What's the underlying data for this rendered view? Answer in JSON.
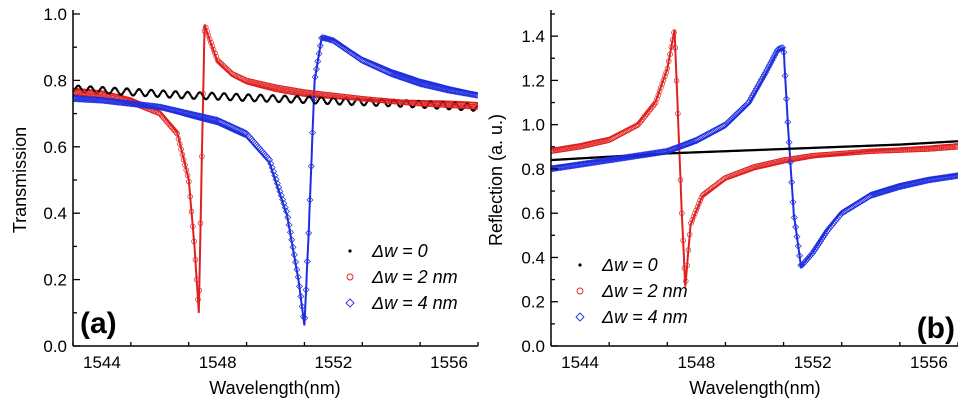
{
  "figure": {
    "panels": [
      "(a)",
      "(b)"
    ]
  },
  "chart_data": [
    {
      "type": "line",
      "panel_label": "(a)",
      "xlabel": "Wavelength(nm)",
      "ylabel": "Transmission",
      "xlim": [
        1543,
        1557
      ],
      "ylim": [
        0.0,
        1.0
      ],
      "xticks": [
        1544,
        1548,
        1552,
        1556
      ],
      "xtick_labels": [
        "1544",
        "1548",
        "1552",
        "1556"
      ],
      "yticks": [
        0.0,
        0.2,
        0.4,
        0.6,
        0.8,
        1.0
      ],
      "ytick_labels": [
        "0.0",
        "0.2",
        "0.4",
        "0.6",
        "0.8",
        "1.0"
      ],
      "legend_position": "lower-right",
      "series": [
        {
          "name": "Δw = 0",
          "color": "#000000",
          "marker": "dot",
          "x": [
            1543,
            1544,
            1545,
            1546,
            1547,
            1548,
            1549,
            1550,
            1551,
            1552,
            1553,
            1554,
            1555,
            1556,
            1557
          ],
          "y": [
            0.775,
            0.77,
            0.765,
            0.76,
            0.755,
            0.752,
            0.748,
            0.745,
            0.742,
            0.738,
            0.735,
            0.732,
            0.728,
            0.723,
            0.718
          ],
          "ripple": 0.01
        },
        {
          "name": "Δw = 2 nm",
          "color": "#e02020",
          "marker": "circle",
          "fit": "fano",
          "x": [
            1543,
            1544,
            1545,
            1546,
            1546.6,
            1547,
            1547.2,
            1547.35,
            1547.45,
            1547.55,
            1547.7,
            1548,
            1548.5,
            1549,
            1550,
            1551,
            1552,
            1553,
            1554,
            1555,
            1556,
            1557
          ],
          "y": [
            0.765,
            0.755,
            0.735,
            0.7,
            0.64,
            0.5,
            0.3,
            0.1,
            0.55,
            0.97,
            0.93,
            0.86,
            0.82,
            0.8,
            0.78,
            0.765,
            0.755,
            0.745,
            0.737,
            0.73,
            0.725,
            0.72
          ]
        },
        {
          "name": "Δw = 4 nm",
          "color": "#1f2ee0",
          "marker": "diamond",
          "fit": "fano",
          "x": [
            1543,
            1544,
            1545,
            1546,
            1547,
            1548,
            1549,
            1549.8,
            1550.4,
            1550.8,
            1551.0,
            1551.15,
            1551.35,
            1551.6,
            1552,
            1552.5,
            1553,
            1554,
            1555,
            1556,
            1557
          ],
          "y": [
            0.745,
            0.74,
            0.73,
            0.72,
            0.7,
            0.68,
            0.64,
            0.56,
            0.4,
            0.2,
            0.065,
            0.35,
            0.8,
            0.93,
            0.92,
            0.89,
            0.86,
            0.82,
            0.79,
            0.77,
            0.755
          ]
        }
      ]
    },
    {
      "type": "line",
      "panel_label": "(b)",
      "xlabel": "Wavelength(nm)",
      "ylabel": "Reflection (a. u.)",
      "xlim": [
        1543,
        1557
      ],
      "ylim": [
        0.0,
        1.5
      ],
      "xticks": [
        1544,
        1548,
        1552,
        1556
      ],
      "xtick_labels": [
        "1544",
        "1548",
        "1552",
        "1556"
      ],
      "yticks": [
        0.0,
        0.2,
        0.4,
        0.6,
        0.8,
        1.0,
        1.2,
        1.4
      ],
      "ytick_labels": [
        "0.0",
        "0.2",
        "0.4",
        "0.6",
        "0.8",
        "1.0",
        "1.2",
        "1.4"
      ],
      "legend_position": "lower-left",
      "series": [
        {
          "name": "Δw = 0",
          "color": "#000000",
          "marker": "dot",
          "x": [
            1543,
            1545,
            1547,
            1549,
            1551,
            1553,
            1555,
            1557
          ],
          "y": [
            0.84,
            0.855,
            0.87,
            0.88,
            0.89,
            0.9,
            0.91,
            0.925
          ],
          "ripple": 0.0
        },
        {
          "name": "Δw = 2 nm",
          "color": "#e02020",
          "marker": "circle",
          "fit": "fano",
          "x": [
            1543,
            1544,
            1545,
            1546,
            1546.6,
            1547,
            1547.25,
            1547.38,
            1547.5,
            1547.62,
            1547.8,
            1548.2,
            1549,
            1550,
            1551,
            1552,
            1553,
            1554,
            1555,
            1556,
            1557
          ],
          "y": [
            0.88,
            0.9,
            0.93,
            1.0,
            1.1,
            1.25,
            1.43,
            1.0,
            0.6,
            0.27,
            0.55,
            0.68,
            0.76,
            0.81,
            0.84,
            0.86,
            0.87,
            0.88,
            0.885,
            0.89,
            0.9
          ]
        },
        {
          "name": "Δw = 4 nm",
          "color": "#1f2ee0",
          "marker": "diamond",
          "fit": "fano",
          "x": [
            1543,
            1544,
            1545,
            1546,
            1547,
            1548,
            1549,
            1549.8,
            1550.4,
            1550.8,
            1551.0,
            1551.15,
            1551.35,
            1551.6,
            1552,
            1552.5,
            1553,
            1554,
            1555,
            1556,
            1557
          ],
          "y": [
            0.8,
            0.82,
            0.84,
            0.86,
            0.88,
            0.93,
            1.0,
            1.1,
            1.24,
            1.34,
            1.35,
            1.0,
            0.6,
            0.36,
            0.42,
            0.52,
            0.6,
            0.68,
            0.72,
            0.75,
            0.77
          ]
        }
      ]
    }
  ]
}
